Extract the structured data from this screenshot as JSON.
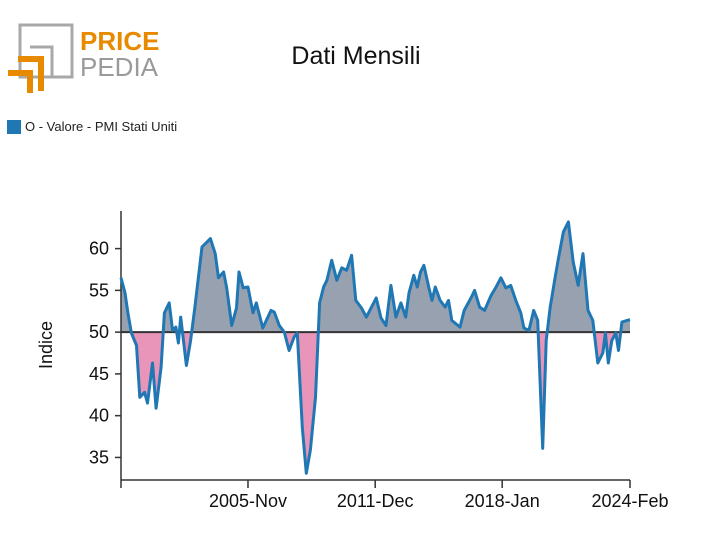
{
  "brand": {
    "logo_text_1": "PRICE",
    "logo_text_2": "PEDIA"
  },
  "chart_data": {
    "type": "area",
    "title": "Dati Mensili",
    "ylabel": "Indice",
    "xlabel": "",
    "legend": {
      "label": "O - Valore - PMI Stati Uniti",
      "position": "top-left"
    },
    "baseline": 50,
    "ylim": [
      32.3,
      64.5
    ],
    "xlim": [
      1999.75,
      2024.12
    ],
    "y_ticks": [
      35,
      40,
      45,
      50,
      55,
      60
    ],
    "x_ticks": [
      {
        "x": 1999.75,
        "label": ""
      },
      {
        "x": 2005.83,
        "label": "2005-Nov"
      },
      {
        "x": 2011.92,
        "label": "2011-Dec"
      },
      {
        "x": 2018.0,
        "label": "2018-Jan"
      },
      {
        "x": 2024.12,
        "label": "2024-Feb"
      }
    ],
    "colors": {
      "line": "#1f77b4",
      "above": "#98a1b0",
      "below": "#e994b9",
      "baseline": "#333333"
    },
    "series": [
      {
        "name": "O - Valore - PMI Stati Uniti",
        "x": [
          1999.75,
          1999.94,
          2000.08,
          2000.25,
          2000.49,
          2000.65,
          2000.88,
          2001.02,
          2001.26,
          2001.43,
          2001.67,
          2001.83,
          2002.06,
          2002.22,
          2002.38,
          2002.5,
          2002.61,
          2002.88,
          2003.08,
          2003.29,
          2003.63,
          2003.79,
          2004.03,
          2004.26,
          2004.42,
          2004.66,
          2004.81,
          2005.05,
          2005.28,
          2005.4,
          2005.6,
          2005.83,
          2006.07,
          2006.23,
          2006.54,
          2006.93,
          2007.09,
          2007.33,
          2007.57,
          2007.8,
          2008.04,
          2008.19,
          2008.43,
          2008.62,
          2008.82,
          2009.06,
          2009.26,
          2009.45,
          2009.61,
          2009.84,
          2010.08,
          2010.32,
          2010.55,
          2010.79,
          2010.99,
          2011.26,
          2011.5,
          2011.97,
          2012.2,
          2012.44,
          2012.67,
          2012.91,
          2013.15,
          2013.38,
          2013.54,
          2013.77,
          2013.93,
          2014.09,
          2014.25,
          2014.48,
          2014.64,
          2014.8,
          2015.03,
          2015.27,
          2015.43,
          2015.59,
          2015.98,
          2016.18,
          2016.53,
          2016.68,
          2016.92,
          2017.16,
          2017.47,
          2017.71,
          2017.94,
          2018.18,
          2018.41,
          2018.65,
          2018.89,
          2019.04,
          2019.28,
          2019.51,
          2019.7,
          2019.94,
          2020.11,
          2020.3,
          2020.54,
          2020.69,
          2020.93,
          2021.17,
          2021.4,
          2021.64,
          2021.87,
          2022.11,
          2022.34,
          2022.58,
          2022.82,
          2022.94,
          2023.08,
          2023.25,
          2023.44,
          2023.57,
          2023.73,
          2024.12
        ],
        "y": [
          56.5,
          54.7,
          52.3,
          49.9,
          48.4,
          42.2,
          42.8,
          41.5,
          46.3,
          40.9,
          45.8,
          52.3,
          53.5,
          50.2,
          50.6,
          48.7,
          51.8,
          46.0,
          49.0,
          53.0,
          60.2,
          60.6,
          61.2,
          59.4,
          56.5,
          57.2,
          55.3,
          50.8,
          52.9,
          57.2,
          55.3,
          55.4,
          52.3,
          53.5,
          50.5,
          52.6,
          52.4,
          50.8,
          50.0,
          47.8,
          49.4,
          49.9,
          38.6,
          33.1,
          35.9,
          42.2,
          53.5,
          55.4,
          56.2,
          58.6,
          56.2,
          57.7,
          57.4,
          59.2,
          53.8,
          52.9,
          51.8,
          54.1,
          51.7,
          50.8,
          55.6,
          51.8,
          53.5,
          51.8,
          54.7,
          56.8,
          55.4,
          57.2,
          58.0,
          55.4,
          53.8,
          55.4,
          53.8,
          53.0,
          53.8,
          51.4,
          50.6,
          52.6,
          54.2,
          55.0,
          53.0,
          52.6,
          54.4,
          55.4,
          56.5,
          55.3,
          55.6,
          53.8,
          52.3,
          50.5,
          50.2,
          52.6,
          51.4,
          36.1,
          49.0,
          53.0,
          56.6,
          58.8,
          62.0,
          63.2,
          58.4,
          55.6,
          59.4,
          52.6,
          51.4,
          46.3,
          47.5,
          49.9,
          46.3,
          49.0,
          49.9,
          47.8,
          51.2,
          51.5
        ]
      }
    ]
  }
}
